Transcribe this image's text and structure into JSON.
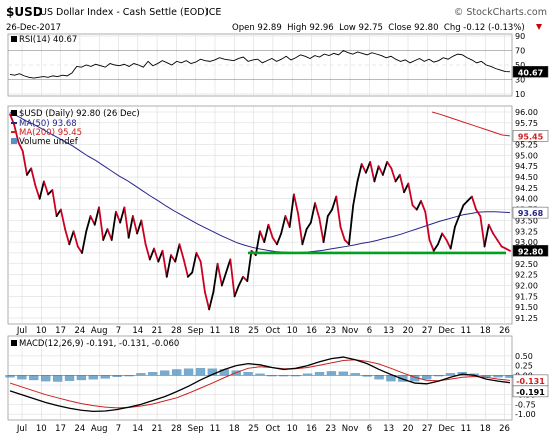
{
  "header": {
    "symbol": "$USD",
    "name": "US Dollar Index - Cash Settle (EOD)",
    "exchange": "ICE",
    "date": "26-Dec-2017",
    "ohlc": "Open 92.89  High 92.96  Low 92.75  Close 92.80  Chg -0.12 (-0.13%)",
    "ohlc_arrow_color": "#d40000",
    "brand": "© StockCharts.com"
  },
  "colors": {
    "price_up": "#000000",
    "price_down": "#cc0022",
    "ma50": "#26268c",
    "ma200": "#d02020",
    "support": "#00a020",
    "macd": "#000000",
    "signal": "#cc2020",
    "hist": "#4a8fc0",
    "rsi": "#000000",
    "grid": "#d6d6d6",
    "frame": "#9a9a9a"
  },
  "rsi_panel": {
    "label": "RSI(14) 40.67",
    "ticks": [
      "90",
      "70",
      "50",
      "30",
      "10"
    ],
    "badge": "40.67"
  },
  "price_panel": {
    "legend": [
      {
        "text": "$USD (Daily) 92.80 (26 Dec)",
        "swatch": "#000000"
      },
      {
        "text": "MA(50) 93.68",
        "swatch": "#26268c"
      },
      {
        "text": "MA(200) 95.45",
        "swatch": "#d02020"
      },
      {
        "text": "Volume undef",
        "swatch": "#5b8fc4"
      }
    ],
    "yticks": [
      "96.00",
      "95.75",
      "95.50",
      "95.25",
      "95.00",
      "94.75",
      "94.50",
      "94.25",
      "94.00",
      "93.75",
      "93.50",
      "93.25",
      "93.00",
      "92.75",
      "92.50",
      "92.25",
      "92.00",
      "91.75",
      "91.50",
      "91.25"
    ],
    "badges": {
      "ma200": "95.45",
      "ma50": "93.68",
      "close": "92.80"
    }
  },
  "xaxis": {
    "labels": [
      "Jul",
      "10",
      "17",
      "24",
      "Aug",
      "7",
      "14",
      "21",
      "28",
      "Sep",
      "11",
      "18",
      "25",
      "Oct",
      "10",
      "16",
      "23",
      "Nov",
      "6",
      "13",
      "20",
      "27",
      "Dec",
      "11",
      "18",
      "26"
    ]
  },
  "macd_panel": {
    "label": "MACD(12,26,9) -0.191, -0.131, -0.060",
    "yticks": [
      "0.50",
      "0.25",
      "0.00",
      "-0.25",
      "-0.50",
      "-0.75",
      "-1.00"
    ],
    "badges": [
      "-0.131",
      "-0.191"
    ]
  },
  "chart_data": {
    "type": "line",
    "title": "$USD US Dollar Index - Cash Settle (EOD) ICE",
    "x_label_ticks": [
      "Jul",
      "10",
      "17",
      "24",
      "Aug",
      "7",
      "14",
      "21",
      "28",
      "Sep",
      "11",
      "18",
      "25",
      "Oct",
      "10",
      "16",
      "23",
      "Nov",
      "6",
      "13",
      "20",
      "27",
      "Dec",
      "11",
      "18",
      "26"
    ],
    "price": {
      "ylim": [
        91.25,
        96.0
      ],
      "close": [
        95.95,
        95.7,
        95.3,
        95.1,
        94.55,
        94.7,
        94.3,
        94.0,
        94.4,
        94.1,
        94.2,
        93.6,
        93.75,
        93.3,
        92.95,
        93.25,
        92.9,
        92.75,
        93.25,
        93.6,
        93.4,
        93.8,
        93.05,
        93.3,
        93.05,
        93.7,
        93.45,
        93.8,
        93.1,
        93.6,
        93.2,
        93.5,
        92.95,
        92.6,
        92.85,
        92.55,
        92.8,
        92.2,
        92.7,
        92.55,
        92.95,
        92.6,
        92.2,
        92.3,
        92.75,
        92.55,
        91.85,
        91.45,
        91.85,
        92.5,
        92.0,
        92.3,
        92.6,
        91.75,
        92.0,
        92.2,
        92.1,
        92.8,
        92.7,
        93.25,
        93.0,
        93.4,
        93.1,
        92.95,
        93.2,
        93.6,
        93.35,
        94.1,
        93.65,
        92.95,
        93.3,
        93.45,
        93.9,
        93.55,
        93.0,
        93.6,
        93.75,
        94.05,
        93.35,
        93.05,
        92.95,
        93.85,
        94.4,
        94.8,
        94.6,
        94.85,
        94.4,
        94.75,
        94.55,
        94.85,
        94.7,
        94.4,
        94.55,
        94.15,
        94.35,
        93.85,
        93.75,
        93.95,
        93.7,
        93.05,
        92.8,
        92.95,
        93.2,
        93.05,
        92.85,
        93.35,
        93.6,
        93.85,
        93.95,
        94.05,
        93.75,
        93.6,
        92.9,
        93.4,
        93.2,
        93.05,
        92.9,
        92.85,
        92.8
      ],
      "ma50": [
        96.0,
        95.9,
        95.8,
        95.72,
        95.62,
        95.52,
        95.42,
        95.32,
        95.22,
        95.1,
        94.98,
        94.88,
        94.76,
        94.64,
        94.52,
        94.42,
        94.3,
        94.18,
        94.06,
        93.95,
        93.83,
        93.72,
        93.62,
        93.52,
        93.42,
        93.33,
        93.24,
        93.15,
        93.07,
        92.99,
        92.93,
        92.88,
        92.84,
        92.81,
        92.78,
        92.77,
        92.76,
        92.76,
        92.77,
        92.79,
        92.81,
        92.84,
        92.87,
        92.9,
        92.93,
        92.97,
        93.0,
        93.04,
        93.09,
        93.13,
        93.18,
        93.24,
        93.3,
        93.36,
        93.42,
        93.48,
        93.53,
        93.58,
        93.63,
        93.66,
        93.69,
        93.7,
        93.7,
        93.69,
        93.68
      ],
      "ma200": [
        96.0,
        95.95,
        95.89,
        95.83,
        95.77,
        95.71,
        95.65,
        95.59,
        95.53,
        95.47,
        95.45
      ],
      "support": 92.75
    },
    "rsi": {
      "ylim": [
        10,
        90
      ],
      "values": [
        37,
        36,
        38,
        35,
        33,
        32,
        33,
        34,
        33,
        35,
        34,
        36,
        35,
        39,
        48,
        47,
        50,
        48,
        51,
        49,
        47,
        52,
        50,
        49,
        51,
        48,
        52,
        50,
        47,
        55,
        49,
        52,
        56,
        53,
        50,
        55,
        53,
        56,
        52,
        54,
        58,
        56,
        55,
        57,
        60,
        58,
        57,
        56,
        59,
        61,
        55,
        57,
        58,
        53,
        56,
        59,
        55,
        58,
        62,
        57,
        60,
        64,
        62,
        59,
        63,
        61,
        65,
        63,
        66,
        64,
        70,
        67,
        65,
        68,
        66,
        64,
        67,
        65,
        63,
        60,
        62,
        58,
        55,
        57,
        53,
        56,
        59,
        55,
        58,
        54,
        56,
        60,
        58,
        62,
        65,
        64,
        60,
        57,
        53,
        55,
        50,
        48,
        45,
        43,
        41,
        40.67
      ]
    },
    "macd": {
      "ylim": [
        -1.1,
        0.6
      ],
      "macd": [
        -0.4,
        -0.5,
        -0.6,
        -0.7,
        -0.78,
        -0.85,
        -0.9,
        -0.93,
        -0.92,
        -0.88,
        -0.82,
        -0.75,
        -0.65,
        -0.55,
        -0.42,
        -0.28,
        -0.12,
        0.02,
        0.15,
        0.25,
        0.3,
        0.27,
        0.2,
        0.15,
        0.18,
        0.25,
        0.35,
        0.43,
        0.47,
        0.4,
        0.3,
        0.15,
        0.02,
        -0.1,
        -0.2,
        -0.22,
        -0.15,
        -0.05,
        0.03,
        0.0,
        -0.1,
        -0.15,
        -0.191
      ],
      "signal": [
        -0.2,
        -0.3,
        -0.4,
        -0.5,
        -0.58,
        -0.66,
        -0.73,
        -0.78,
        -0.82,
        -0.84,
        -0.83,
        -0.79,
        -0.74,
        -0.66,
        -0.58,
        -0.46,
        -0.33,
        -0.2,
        -0.06,
        0.07,
        0.18,
        0.22,
        0.2,
        0.17,
        0.17,
        0.2,
        0.26,
        0.32,
        0.38,
        0.4,
        0.36,
        0.29,
        0.18,
        0.06,
        -0.05,
        -0.13,
        -0.14,
        -0.1,
        -0.05,
        -0.03,
        -0.05,
        -0.1,
        -0.131
      ],
      "hist": [
        -0.05,
        -0.1,
        -0.12,
        -0.15,
        -0.16,
        -0.14,
        -0.12,
        -0.1,
        -0.08,
        -0.04,
        0.0,
        0.05,
        0.08,
        0.12,
        0.15,
        0.17,
        0.18,
        0.17,
        0.15,
        0.12,
        0.08,
        0.04,
        0.0,
        -0.02,
        0.0,
        0.04,
        0.08,
        0.1,
        0.09,
        0.05,
        -0.03,
        -0.1,
        -0.15,
        -0.16,
        -0.15,
        -0.1,
        -0.02,
        0.05,
        0.08,
        0.04,
        -0.04,
        -0.05,
        -0.06
      ]
    }
  }
}
